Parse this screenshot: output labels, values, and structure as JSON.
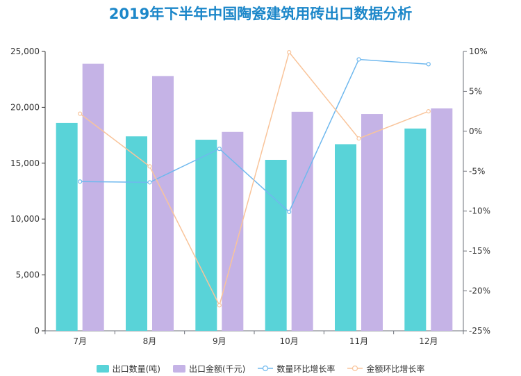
{
  "chart_data": {
    "type": "bar",
    "title": "2019年下半年中国陶瓷建筑用砖出口数据分析",
    "categories": [
      "7月",
      "8月",
      "9月",
      "10月",
      "11月",
      "12月"
    ],
    "series": [
      {
        "name": "出口数量(吨)",
        "type": "bar",
        "axis": "left",
        "color": "#59d3d8",
        "values": [
          18600,
          17400,
          17100,
          15300,
          16700,
          18100
        ]
      },
      {
        "name": "出口金额(千元)",
        "type": "bar",
        "axis": "left",
        "color": "#c5b3e6",
        "values": [
          23900,
          22800,
          17800,
          19600,
          19400,
          19900
        ]
      },
      {
        "name": "数量环比增长率",
        "type": "line",
        "axis": "right",
        "color": "#6fb8ee",
        "values": [
          -6.3,
          -6.4,
          -2.2,
          -10.1,
          9.0,
          8.4
        ]
      },
      {
        "name": "金额环比增长率",
        "type": "line",
        "axis": "right",
        "color": "#f9c49a",
        "values": [
          2.2,
          -4.4,
          -21.8,
          9.9,
          -0.9,
          2.5
        ]
      }
    ],
    "y_left": {
      "min": 0,
      "max": 25000,
      "ticks": [
        "0",
        "5,000",
        "10,000",
        "15,000",
        "20,000",
        "25,000"
      ],
      "tick_values": [
        0,
        5000,
        10000,
        15000,
        20000,
        25000
      ]
    },
    "y_right": {
      "min": -25,
      "max": 10,
      "ticks": [
        "-25%",
        "-20%",
        "-15%",
        "-10%",
        "-5%",
        "0%",
        "5%",
        "10%"
      ],
      "tick_values": [
        -25,
        -20,
        -15,
        -10,
        -5,
        0,
        5,
        10
      ]
    },
    "grid": false,
    "legend_position": "bottom"
  }
}
